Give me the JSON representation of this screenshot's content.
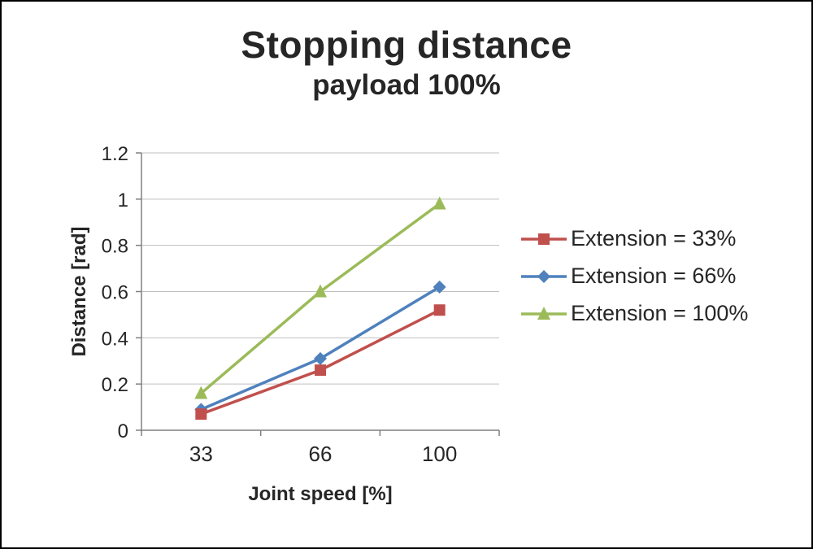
{
  "chart_data": {
    "type": "line",
    "title": "Stopping distance",
    "subtitle": "payload 100%",
    "xlabel": "Joint speed [%]",
    "ylabel": "Distance [rad]",
    "categories": [
      "33",
      "66",
      "100"
    ],
    "ylim": [
      0,
      1.2
    ],
    "yticks": [
      0,
      0.2,
      0.4,
      0.6,
      0.8,
      1,
      1.2
    ],
    "grid": true,
    "legend_position": "right",
    "series": [
      {
        "name": "Extension = 33%",
        "color": "#C0504D",
        "marker": "square",
        "values": [
          0.07,
          0.26,
          0.52
        ]
      },
      {
        "name": "Extension = 66%",
        "color": "#4F81BD",
        "marker": "diamond",
        "values": [
          0.09,
          0.31,
          0.62
        ]
      },
      {
        "name": "Extension = 100%",
        "color": "#9BBB59",
        "marker": "triangle",
        "values": [
          0.16,
          0.6,
          0.98
        ]
      }
    ],
    "colors": {
      "gridline": "#BFBFBF",
      "axis": "#808080",
      "text": "#262626"
    }
  }
}
